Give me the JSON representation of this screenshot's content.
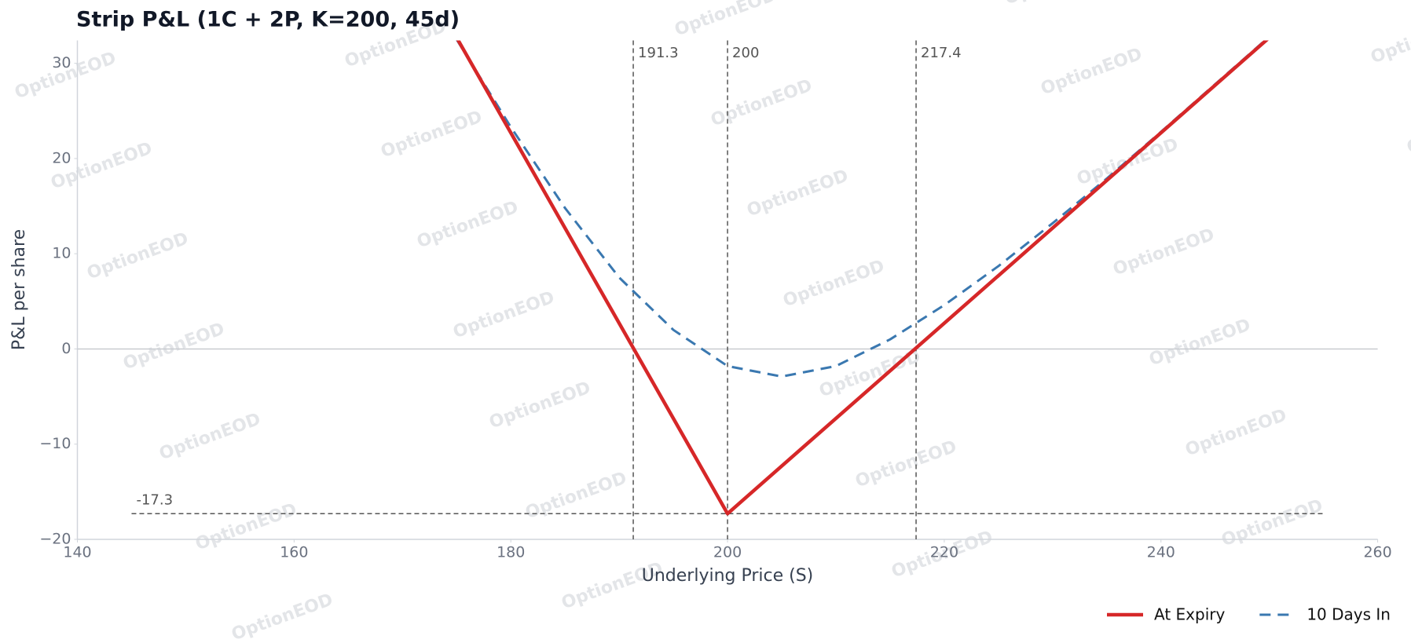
{
  "chart_data": {
    "type": "line",
    "title": "Strip P&L (1C + 2P, K=200, 45d)",
    "x_label": "Underlying Price (S)",
    "y_label": "P&L per share",
    "xlim": [
      140,
      260
    ],
    "ylim": [
      -20,
      32.4
    ],
    "xticks": [
      140,
      160,
      180,
      200,
      220,
      240,
      260
    ],
    "yticks": [
      {
        "value": -20,
        "label": "−20"
      },
      {
        "value": -10,
        "label": "−10"
      },
      0,
      10,
      20,
      30
    ],
    "series": [
      {
        "name": "At Expiry",
        "color": "#d62728",
        "style": "solid",
        "x": [
          175,
          200,
          250
        ],
        "values": [
          32.7,
          -17.3,
          32.7
        ]
      },
      {
        "name": "10 Days In",
        "color": "#3a78b0",
        "style": "dashed",
        "x": [
          175,
          180,
          185,
          190,
          195,
          200,
          205,
          210,
          215,
          220,
          225,
          230,
          235,
          240,
          245,
          250
        ],
        "values": [
          32.5,
          23.3,
          14.8,
          7.5,
          2.0,
          -1.8,
          -2.9,
          -1.8,
          1.0,
          4.6,
          8.7,
          13.2,
          17.9,
          22.8,
          27.8,
          32.8
        ]
      }
    ],
    "vlines": [
      191.3,
      200,
      217.4
    ],
    "hline": {
      "value": -17.3,
      "label": "-17.3",
      "x": [
        145,
        255
      ]
    },
    "zero_line": true,
    "legend": "lower right",
    "watermark": "OptionEOD"
  }
}
